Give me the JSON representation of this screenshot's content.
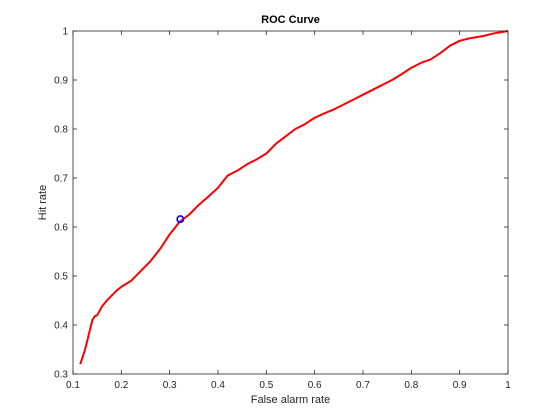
{
  "chart_data": {
    "type": "line",
    "title": "ROC Curve",
    "xlabel": "False alarm rate",
    "ylabel": "Hit rate",
    "xlim": [
      0.1,
      1
    ],
    "ylim": [
      0.3,
      1
    ],
    "xticks": [
      0.1,
      0.2,
      0.3,
      0.4,
      0.5,
      0.6,
      0.7,
      0.8,
      0.9,
      1
    ],
    "yticks": [
      0.3,
      0.4,
      0.5,
      0.6,
      0.7,
      0.8,
      0.9,
      1
    ],
    "xtick_labels": [
      "0.1",
      "0.2",
      "0.3",
      "0.4",
      "0.5",
      "0.6",
      "0.7",
      "0.8",
      "0.9",
      "1"
    ],
    "ytick_labels": [
      "0.3",
      "0.4",
      "0.5",
      "0.6",
      "0.7",
      "0.8",
      "0.9",
      "1"
    ],
    "grid": false,
    "series": [
      {
        "color": "#ff0000",
        "x": [
          0.115,
          0.12,
          0.125,
          0.13,
          0.135,
          0.14,
          0.145,
          0.15,
          0.16,
          0.17,
          0.18,
          0.19,
          0.2,
          0.22,
          0.24,
          0.26,
          0.28,
          0.3,
          0.32,
          0.34,
          0.36,
          0.38,
          0.4,
          0.42,
          0.44,
          0.46,
          0.48,
          0.5,
          0.52,
          0.54,
          0.56,
          0.58,
          0.6,
          0.62,
          0.64,
          0.66,
          0.68,
          0.7,
          0.72,
          0.74,
          0.76,
          0.78,
          0.8,
          0.82,
          0.84,
          0.86,
          0.88,
          0.9,
          0.92,
          0.95,
          0.97,
          1.0
        ],
        "y": [
          0.32,
          0.335,
          0.35,
          0.37,
          0.39,
          0.41,
          0.418,
          0.42,
          0.438,
          0.45,
          0.46,
          0.47,
          0.478,
          0.49,
          0.51,
          0.53,
          0.555,
          0.585,
          0.61,
          0.625,
          0.645,
          0.662,
          0.68,
          0.705,
          0.715,
          0.728,
          0.738,
          0.75,
          0.77,
          0.785,
          0.8,
          0.81,
          0.823,
          0.832,
          0.84,
          0.85,
          0.86,
          0.87,
          0.88,
          0.89,
          0.9,
          0.912,
          0.925,
          0.935,
          0.942,
          0.955,
          0.97,
          0.98,
          0.985,
          0.99,
          0.995,
          1.0
        ]
      }
    ],
    "marker": {
      "x": 0.322,
      "y": 0.616,
      "color": "#0000ff"
    }
  }
}
